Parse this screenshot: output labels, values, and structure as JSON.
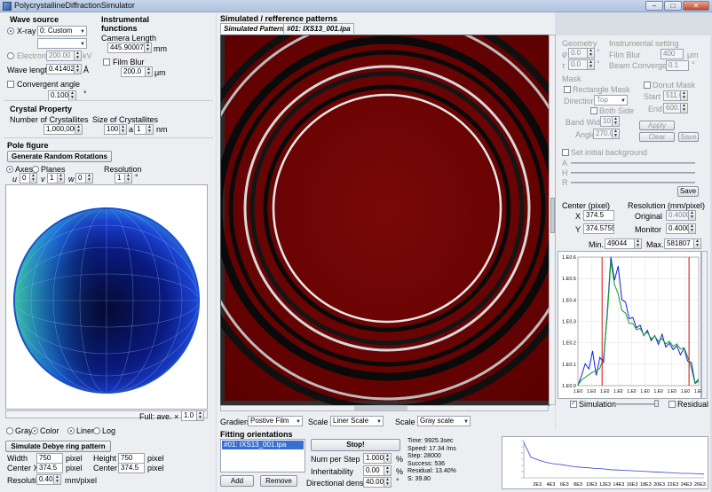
{
  "window": {
    "title": "PolycrystallineDiffractionSimulator",
    "min_label": "−",
    "max_label": "□",
    "close_label": "✕"
  },
  "wave_source": {
    "title": "Wave source",
    "xray_label": "X-ray",
    "xray_value": "0: Custom",
    "electron_label": "Electron",
    "electron_value": "200.00",
    "electron_unit": "kV",
    "wavelength_label": "Wave length",
    "wavelength_value": "0.41402413",
    "wavelength_unit": "Å",
    "convergent_label": "Convergent angle",
    "convergent_value": "0.1000",
    "convergent_unit": "°"
  },
  "instrumental": {
    "title_line1": "Instrumental",
    "title_line2": "functions",
    "camera_label": "Camera Length",
    "camera_value": "445.90007",
    "camera_unit": "mm",
    "filmblur_label": "Film Blur",
    "filmblur_value": "200.0",
    "filmblur_unit": "μm"
  },
  "crystal": {
    "title": "Crystal Property",
    "num_label": "Number of Crystallites",
    "num_value": "1,000,000",
    "size_label": "Size of Crystallites",
    "size_value": "100",
    "size_a": "a",
    "size_value2": "1",
    "size_unit": "nm"
  },
  "pole": {
    "title": "Pole figure",
    "generate_button": "Generate Random Rotations",
    "axes_label": "Axes",
    "planes_label": "Planes",
    "resolution_label": "Resolution",
    "u_label": "u",
    "u_value": "0",
    "v_label": "v",
    "v_value": "1",
    "w_label": "w",
    "w_value": "0",
    "resolution_value": "1",
    "resolution_unit": "°",
    "full_label": "Full: ave. × E",
    "full_value": "1.0",
    "gray_label": "Gray",
    "color_label": "Color",
    "liner_label": "Liner",
    "log_label": "Log"
  },
  "debye": {
    "button": "Simulate Debye ring pattern",
    "width_label": "Width",
    "width_value": "750",
    "height_label": "Height",
    "height_value": "750",
    "centerx_label": "Center X",
    "centerx_value": "374.5",
    "centery_label": "Center Y",
    "centery_value": "374.5",
    "resolution_label": "Resolution",
    "resolution_value": "0.40",
    "resolution_unit": "mm/pixel",
    "pixel_unit": "pixel"
  },
  "patterns": {
    "title": "Simulated / refference patterns",
    "tab1": "Simulated Pattern",
    "tab2": "#01: IXS13_001.ipa",
    "gradient_label": "Gradient",
    "gradient_value": "Postive Film",
    "scale1_label": "Scale 1",
    "scale1_value": "Liner Scale",
    "scale2_label": "Scale 2",
    "scale2_value": "Gray scale"
  },
  "right": {
    "geometry_title": "Geometry",
    "phi_label": "φ",
    "phi_value": "0.0",
    "tau_label": "τ",
    "tau_value": "0.0",
    "deg": "°",
    "inst_title": "Instrumental setting",
    "filmblur_label": "Film Blur",
    "filmblur_value": "400",
    "filmblur_unit": "μm",
    "beamconv_label": "Beam Convergence",
    "beamconv_value": "0.1",
    "beamconv_unit": "°",
    "mask_title": "Mask",
    "rect_mask_label": "Rectangle Mask",
    "donut_mask_label": "Donut Mask",
    "direction_label": "Direction",
    "direction_value": "Top",
    "bothside_label": "Both Side",
    "start_label": "Start",
    "start_value": "511.0",
    "end_label": "End",
    "end_value": "600.0",
    "bandwidth_label": "Band Width",
    "bandwidth_value": "10",
    "angle_label": "Angle",
    "angle_value": "270.0",
    "apply_button": "Apply",
    "clear_button": "Clear",
    "save_button_small": "Save",
    "initbg_label": "Set initial background",
    "a_label": "A",
    "h_label": "H",
    "r_label": "R",
    "save_button": "Save",
    "center_title": "Center (pixel)",
    "x_label": "X",
    "x_value": "374.5",
    "y_label": "Y",
    "y_value": "374.57553",
    "res_title": "Resolution (mm/pixel)",
    "original_label": "Original",
    "original_value": "0.4000",
    "monitor_label": "Monitor",
    "monitor_value": "0.4000",
    "min_label": "Min.",
    "min_value": "49044",
    "max_label": "Max.",
    "max_value": "581807",
    "simulation_label": "Simulation",
    "residual_label": "Residual"
  },
  "fitting": {
    "title": "Fitting orientations",
    "list_item": "#01: IXS13_001.ipa",
    "add_button": "Add",
    "remove_button": "Remove",
    "stop_button": "Stop!",
    "numperstep_label": "Num per Step",
    "numperstep_value": "1.000",
    "pct": "%",
    "inherit_label": "Inheritability",
    "inherit_value": "0.00",
    "dirdens_label": "Directional density",
    "dirdens_value": "40.00",
    "deg": "°",
    "stats": [
      "Time: 9925.3sec",
      "Speed: 17.34 /ms",
      "Step: 28000",
      "Success: 536",
      "Residual: 13.40%",
      "S: 39.80"
    ]
  },
  "chart_data": [
    {
      "type": "line",
      "title": "",
      "y_tick_labels": [
        "1.E0.6",
        "1.E0.5",
        "1.E0.4",
        "1.E0.3",
        "1.E0.2",
        "1.E0.1",
        "1.E0.0"
      ],
      "x_tick_labels": [
        "1.E0",
        "1.E0",
        "1.E0",
        "1.E0",
        "1.E0",
        "1.E0",
        "1.E0",
        "1.E0",
        "1.E0",
        "1.E0"
      ],
      "series": [
        {
          "color": "#1020e0",
          "values": [
            0.02,
            0.05,
            0.2,
            0.1,
            0.3,
            0.05,
            0.25,
            0.15,
            0.6,
            0.98,
            0.85,
            0.9,
            0.7,
            0.62,
            0.55,
            0.5,
            0.48,
            0.44,
            0.42,
            0.4,
            0.38,
            0.36,
            0.35,
            0.37,
            0.33,
            0.3,
            0.31,
            0.28,
            0.27,
            0.26,
            0.22,
            0.15,
            0.05,
            0.02
          ]
        },
        {
          "color": "#10a020",
          "values": [
            0.02,
            0.03,
            0.08,
            0.07,
            0.12,
            0.1,
            0.15,
            0.2,
            0.55,
            0.95,
            0.8,
            0.7,
            0.6,
            0.55,
            0.5,
            0.47,
            0.45,
            0.43,
            0.41,
            0.4,
            0.38,
            0.37,
            0.36,
            0.35,
            0.34,
            0.33,
            0.32,
            0.31,
            0.3,
            0.28,
            0.24,
            0.12,
            0.03,
            0.02
          ]
        }
      ],
      "marker_lines": [
        0.2,
        0.92
      ],
      "marker_color": "#d01010",
      "grid": true
    },
    {
      "type": "line",
      "title": "",
      "x_tick_labels": [
        "2E3",
        "4E3",
        "6E3",
        "8E3",
        "10E3",
        "12E3",
        "14E3",
        "16E3",
        "18E3",
        "20E3",
        "22E3",
        "24E3",
        "26E3"
      ],
      "series": [
        {
          "color": "#3040d0",
          "values": [
            0.95,
            0.55,
            0.48,
            0.42,
            0.38,
            0.36,
            0.33,
            0.3,
            0.28,
            0.27,
            0.25,
            0.24,
            0.22,
            0.21,
            0.2,
            0.19,
            0.18,
            0.17,
            0.16,
            0.15,
            0.14,
            0.13,
            0.12,
            0.12,
            0.11,
            0.1
          ]
        }
      ],
      "grid": false
    }
  ]
}
